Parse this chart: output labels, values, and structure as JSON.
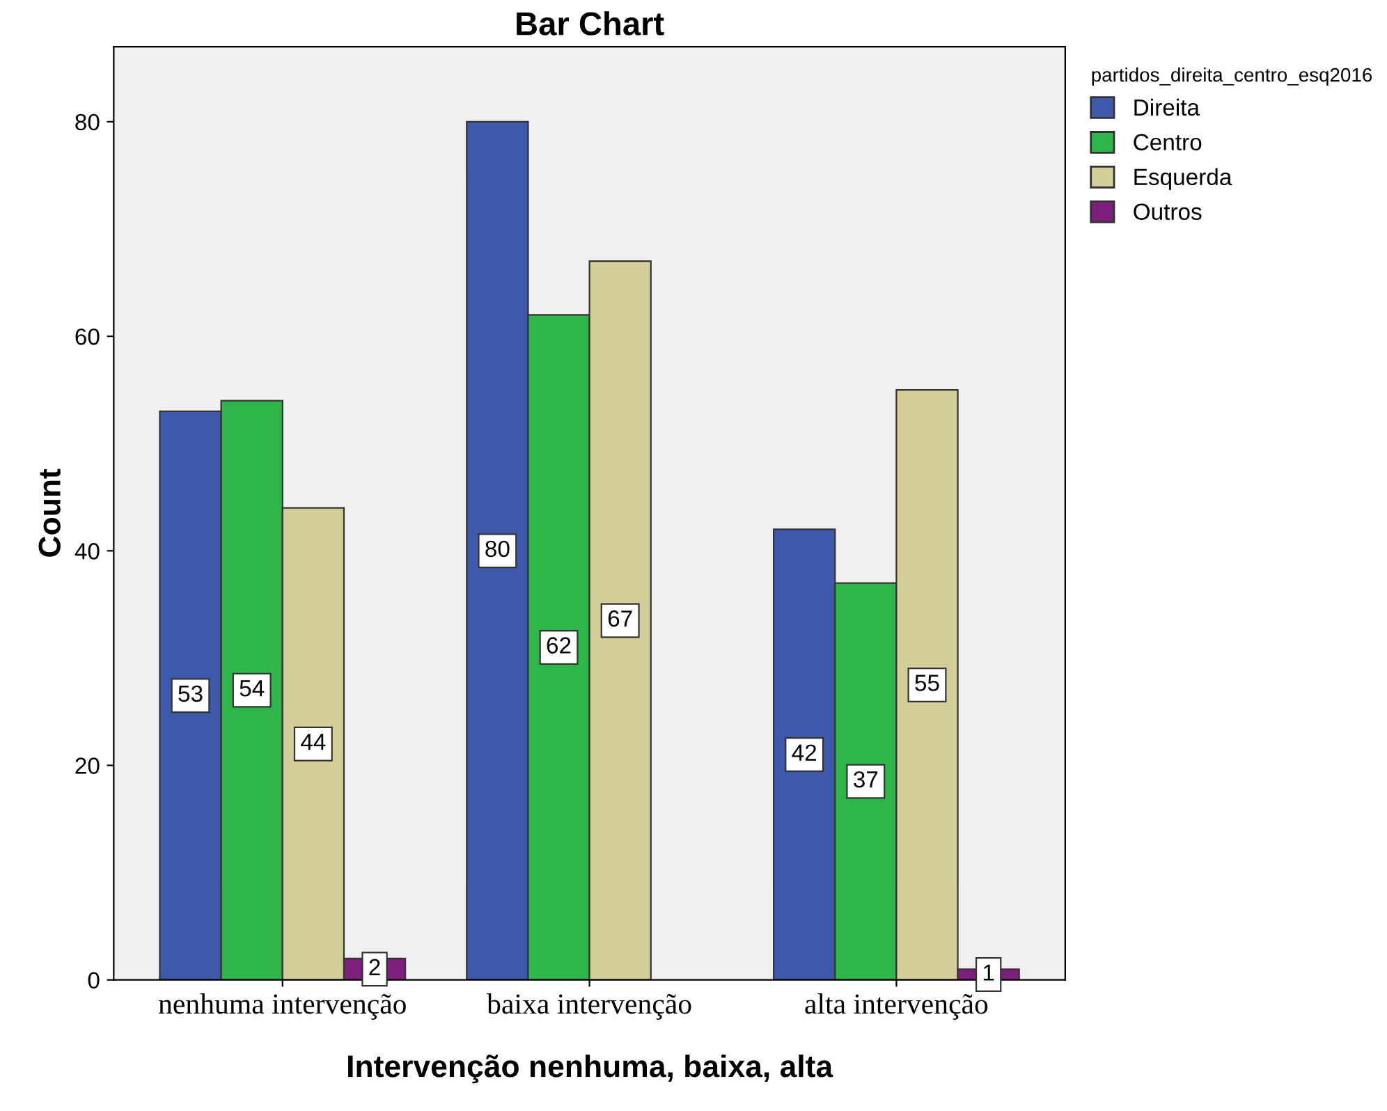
{
  "chart_data": {
    "type": "bar",
    "title": "Bar Chart",
    "xlabel": "Intervenção nenhuma, baixa, alta",
    "ylabel": "Count",
    "legend_title": "partidos_direita_centro_esq2016",
    "categories": [
      "nenhuma intervenção",
      "baixa intervenção",
      "alta intervenção"
    ],
    "series": [
      {
        "name": "Direita",
        "color": "#3e58ac",
        "values": [
          53,
          80,
          42
        ]
      },
      {
        "name": "Centro",
        "color": "#2fb64a",
        "values": [
          54,
          62,
          37
        ]
      },
      {
        "name": "Esquerda",
        "color": "#d4ce98",
        "values": [
          44,
          67,
          55
        ]
      },
      {
        "name": "Outros",
        "color": "#7e1f7d",
        "values": [
          2,
          null,
          1
        ]
      }
    ],
    "ylim": [
      0,
      87
    ],
    "yticks": [
      0,
      20,
      40,
      60,
      80
    ],
    "grid": false,
    "legend": "top right",
    "data_labels": true
  }
}
